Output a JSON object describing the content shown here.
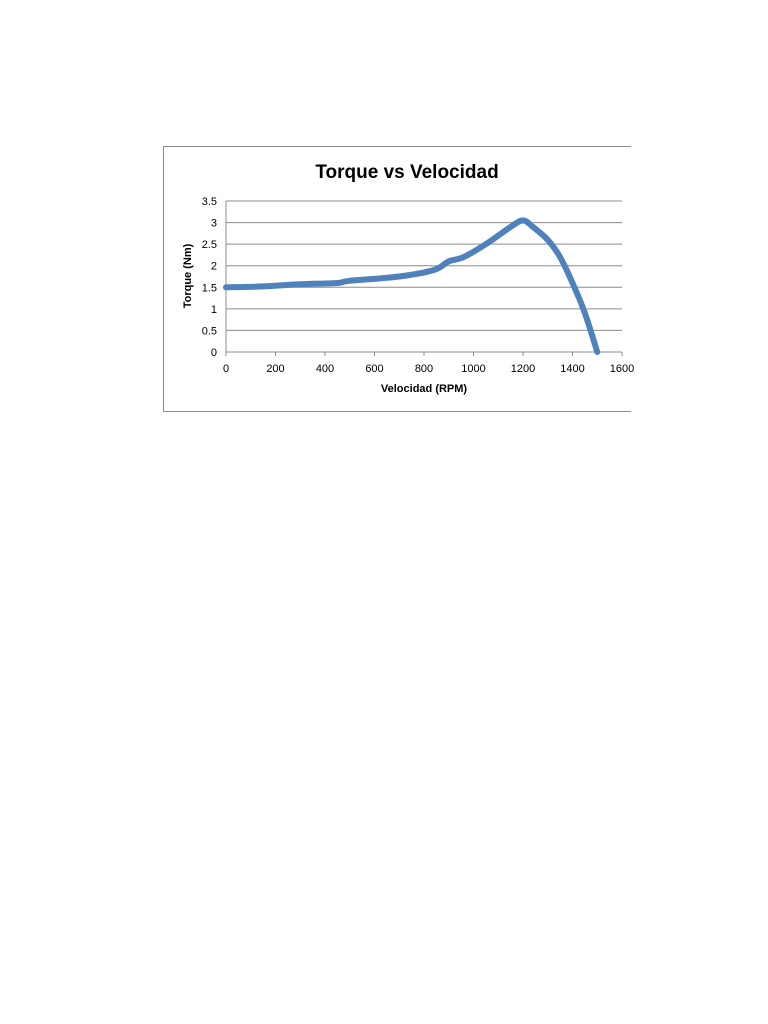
{
  "chart_data": {
    "type": "line",
    "title": "Torque vs Velocidad",
    "xlabel": "Velocidad (RPM)",
    "ylabel": "Torque (Nm)",
    "xlim": [
      0,
      1600
    ],
    "ylim": [
      0,
      3.5
    ],
    "x_ticks": [
      "0",
      "200",
      "400",
      "600",
      "800",
      "1000",
      "1200",
      "1400",
      "1600"
    ],
    "y_ticks": [
      "0",
      "0.5",
      "1",
      "1.5",
      "2",
      "2.5",
      "3",
      "3.5"
    ],
    "grid": "horizontal",
    "legend": "none",
    "series_color": "#4f81bd",
    "series": [
      {
        "x": [
          0,
          150,
          300,
          450,
          500,
          700,
          840,
          900,
          960,
          1050,
          1150,
          1200,
          1240,
          1300,
          1350,
          1400,
          1450,
          1500
        ],
        "y": [
          1.5,
          1.52,
          1.57,
          1.6,
          1.65,
          1.75,
          1.9,
          2.1,
          2.2,
          2.5,
          2.9,
          3.05,
          2.9,
          2.6,
          2.2,
          1.6,
          0.9,
          0
        ]
      }
    ]
  }
}
